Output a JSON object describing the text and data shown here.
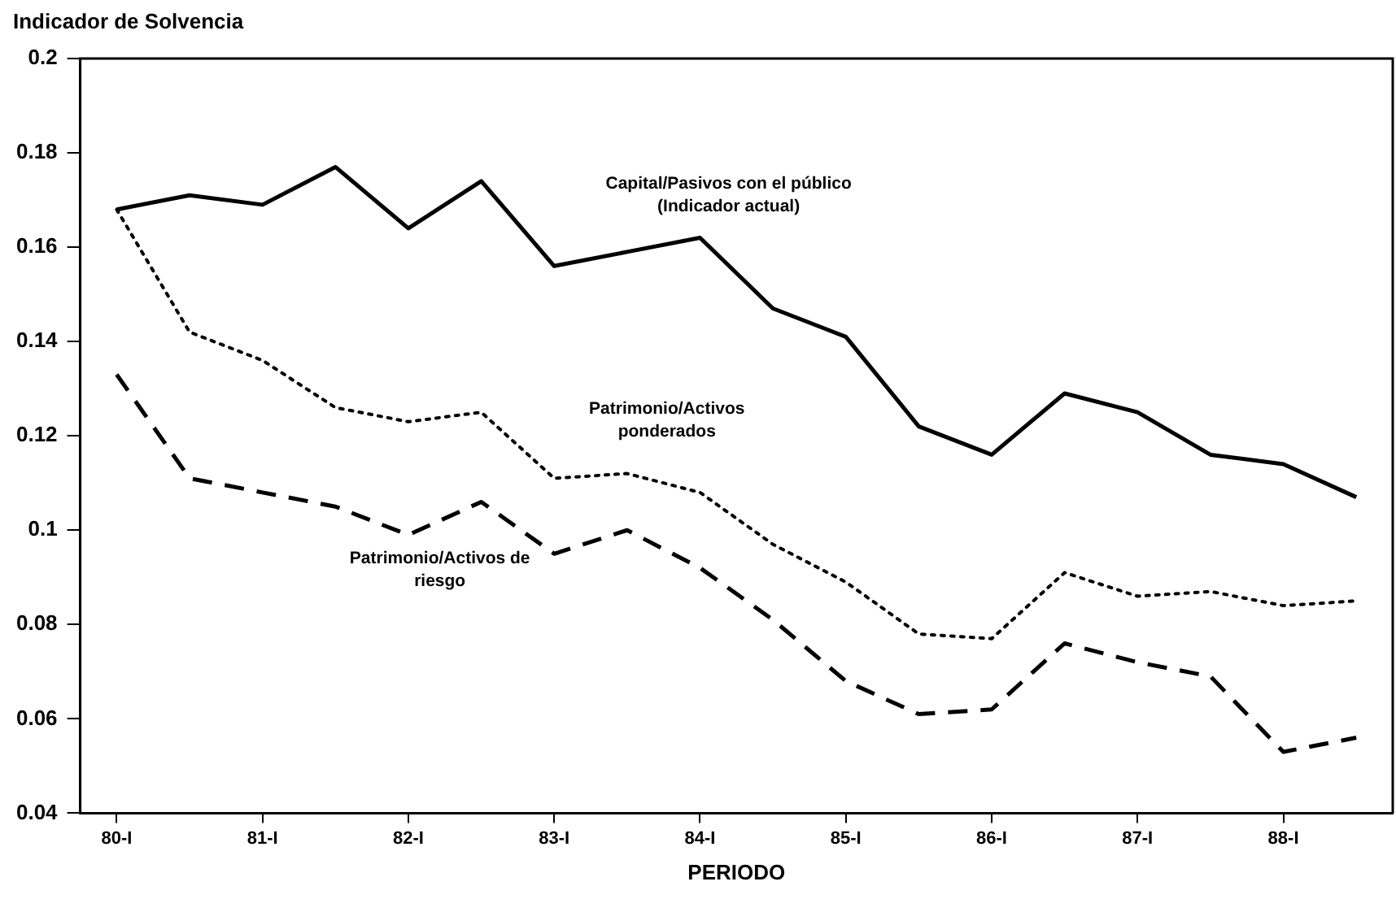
{
  "chart_data": {
    "type": "line",
    "ylabel": "Indicador de Solvencia",
    "xlabel": "PERIODO",
    "categories": [
      "80-I",
      null,
      "81-I",
      null,
      "82-I",
      null,
      "83-I",
      null,
      "84-I",
      null,
      "85-I",
      null,
      "86-I",
      null,
      "87-I",
      null,
      "88-I",
      null
    ],
    "series": [
      {
        "name": "Capital/Pasivos con el público (Indicador actual)",
        "color": "#000000",
        "line_style": "solid",
        "values": [
          0.168,
          0.171,
          0.169,
          0.177,
          0.164,
          0.174,
          0.156,
          0.159,
          0.162,
          0.147,
          0.141,
          0.122,
          0.116,
          0.129,
          0.125,
          0.116,
          0.114,
          0.107
        ]
      },
      {
        "name": "Patrimonio/Activos ponderados",
        "color": "#000000",
        "line_style": "dotted",
        "values": [
          0.168,
          0.142,
          0.136,
          0.126,
          0.123,
          0.125,
          0.111,
          0.112,
          0.108,
          0.097,
          0.089,
          0.078,
          0.077,
          0.091,
          0.086,
          0.087,
          0.084,
          0.085
        ]
      },
      {
        "name": "Patrimonio/Activos de riesgo",
        "color": "#000000",
        "line_style": "dashed",
        "values": [
          0.133,
          0.111,
          0.108,
          0.105,
          0.099,
          0.106,
          0.095,
          0.1,
          0.092,
          0.081,
          0.068,
          0.061,
          0.062,
          0.076,
          0.072,
          0.069,
          0.053,
          0.056
        ]
      }
    ],
    "ylim": [
      0.04,
      0.2
    ],
    "yticks": [
      0.04,
      0.06,
      0.08,
      0.1,
      0.12,
      0.14,
      0.16,
      0.18,
      0.2
    ],
    "grid": false,
    "legend": false,
    "marker": "none"
  }
}
